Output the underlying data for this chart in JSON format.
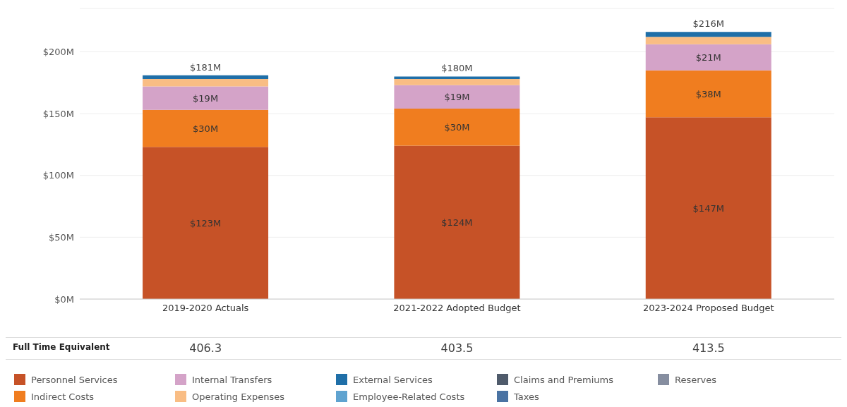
{
  "chart_data": {
    "type": "bar",
    "stacked": true,
    "categories": [
      "2019-2020 Actuals",
      "2021-2022 Adopted Budget",
      "2023-2024 Proposed Budget"
    ],
    "series": [
      {
        "name": "Personnel Services",
        "color": "#c65227",
        "values": [
          123,
          124,
          147
        ],
        "value_labels": [
          "$123M",
          "$124M",
          "$147M"
        ]
      },
      {
        "name": "Indirect Costs",
        "color": "#f07d1f",
        "values": [
          30,
          30,
          38
        ],
        "value_labels": [
          "$30M",
          "$30M",
          "$38M"
        ]
      },
      {
        "name": "Internal Transfers",
        "color": "#d4a3c8",
        "values": [
          19,
          19,
          21
        ],
        "value_labels": [
          "$19M",
          "$19M",
          "$21M"
        ]
      },
      {
        "name": "Operating Expenses",
        "color": "#f9bd84",
        "values": [
          6,
          5,
          6
        ],
        "value_labels": [
          null,
          null,
          null
        ]
      },
      {
        "name": "External Services",
        "color": "#1f6fa8",
        "values": [
          3,
          2,
          4
        ],
        "value_labels": [
          null,
          null,
          null
        ]
      },
      {
        "name": "Employee-Related Costs",
        "color": "#5fa3d0",
        "values": [
          0,
          0,
          0
        ],
        "value_labels": [
          null,
          null,
          null
        ]
      },
      {
        "name": "Claims and Premiums",
        "color": "#4f5b6b",
        "values": [
          0,
          0,
          0
        ],
        "value_labels": [
          null,
          null,
          null
        ]
      },
      {
        "name": "Taxes",
        "color": "#4a73a3",
        "values": [
          0,
          0,
          0
        ],
        "value_labels": [
          null,
          null,
          null
        ]
      },
      {
        "name": "Reserves",
        "color": "#868ea0",
        "values": [
          0,
          0,
          0
        ],
        "value_labels": [
          null,
          null,
          null
        ]
      }
    ],
    "totals": [
      "$181M",
      "$180M",
      "$216M"
    ],
    "ylim": [
      0,
      235
    ],
    "yticks": [
      {
        "value": 0,
        "label": "$0M"
      },
      {
        "value": 50,
        "label": "$50M"
      },
      {
        "value": 100,
        "label": "$100M"
      },
      {
        "value": 150,
        "label": "$150M"
      },
      {
        "value": 200,
        "label": "$200M"
      }
    ],
    "grid": "y",
    "legend": "bottom",
    "annotations": [
      "Full Time Equivalent",
      "406.3",
      "403.5",
      "413.5"
    ]
  }
}
